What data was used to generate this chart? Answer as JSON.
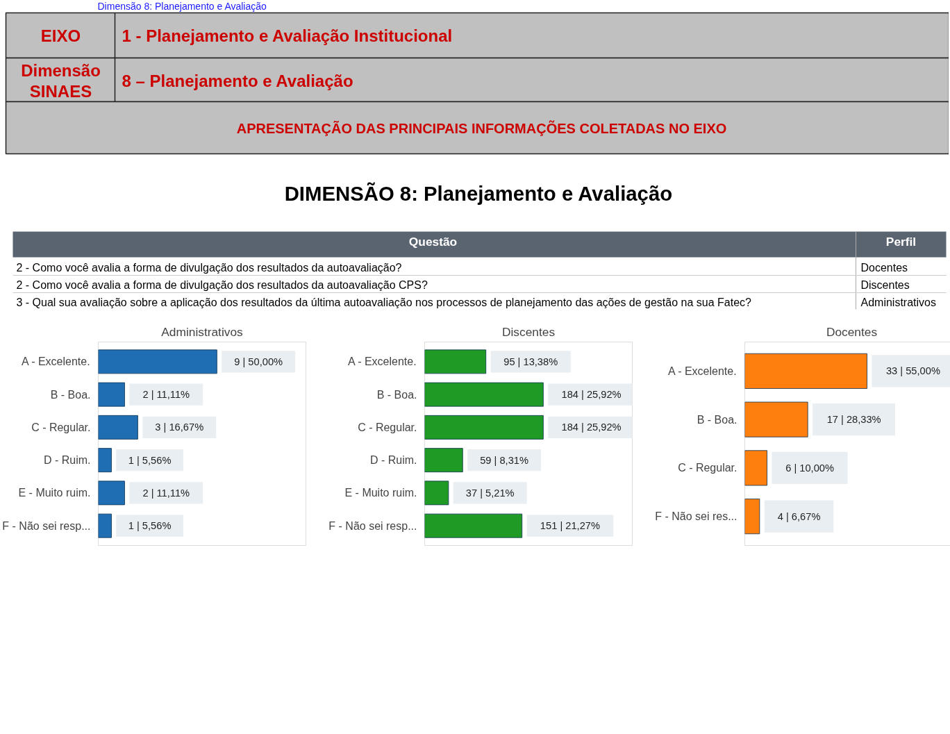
{
  "chart_data": [
    {
      "type": "other",
      "title": "DIMENSÃO 8:  Planejamento e Avaliação",
      "annotations": [
        "Dimensão 8: Planejamento e Avaliação",
        "EIXO",
        "1 - Planejamento e Avaliação Institucional",
        "Dimensão\nSINAES",
        "8 – Planejamento e Avaliação",
        "APRESENTAÇÃO DAS PRINCIPAIS INFORMAÇÕES COLETADAS NO EIXO",
        "Questão",
        "Perfil",
        "2 - Como você avalia a forma de divulgação dos resultados da autoavaliação?",
        "Docentes",
        "2 - Como você avalia a forma de divulgação dos resultados da autoavaliação CPS?",
        "Discentes",
        "3 - Qual sua avaliação sobre a aplicação dos resultados da última autoavaliação nos processos de planejamento das ações de gestão na sua Fatec?",
        "Administrativos"
      ]
    },
    {
      "type": "bar",
      "orientation": "horizontal",
      "title": "Administrativos",
      "categories": [
        "A - Excelente.",
        "B - Boa.",
        "C - Regular.",
        "D - Ruim.",
        "E - Muito ruim.",
        "F - Não sei resp..."
      ],
      "values": [
        9,
        2,
        3,
        1,
        2,
        1
      ],
      "color": "#1f6db3",
      "value_labels": [
        "9 | 50,00%",
        "2 | 11,11%",
        "3 | 16,67%",
        "1 | 5,56%",
        "2 | 11,11%",
        "1 | 5,56%"
      ]
    },
    {
      "type": "bar",
      "orientation": "horizontal",
      "title": "Discentes",
      "categories": [
        "A - Excelente.",
        "B - Boa.",
        "C - Regular.",
        "D - Ruim.",
        "E - Muito ruim.",
        "F - Não sei resp..."
      ],
      "values": [
        95,
        184,
        184,
        59,
        37,
        151
      ],
      "color": "#1f9a24",
      "value_labels": [
        "95 | 13,38%",
        "184 | 25,92%",
        "184 | 25,92%",
        "59 | 8,31%",
        "37 | 5,21%",
        "151 | 21,27%"
      ]
    },
    {
      "type": "bar",
      "orientation": "horizontal",
      "title": "Docentes",
      "categories": [
        "A - Excelente.",
        "B - Boa.",
        "C - Regular.",
        "F - Não sei res..."
      ],
      "values": [
        33,
        17,
        6,
        4
      ],
      "color": "#ff7f0e",
      "value_labels": [
        "33 | 55,00%",
        "17 | 28,33%",
        "6 | 10,00%",
        "4 | 6,67%"
      ]
    }
  ]
}
